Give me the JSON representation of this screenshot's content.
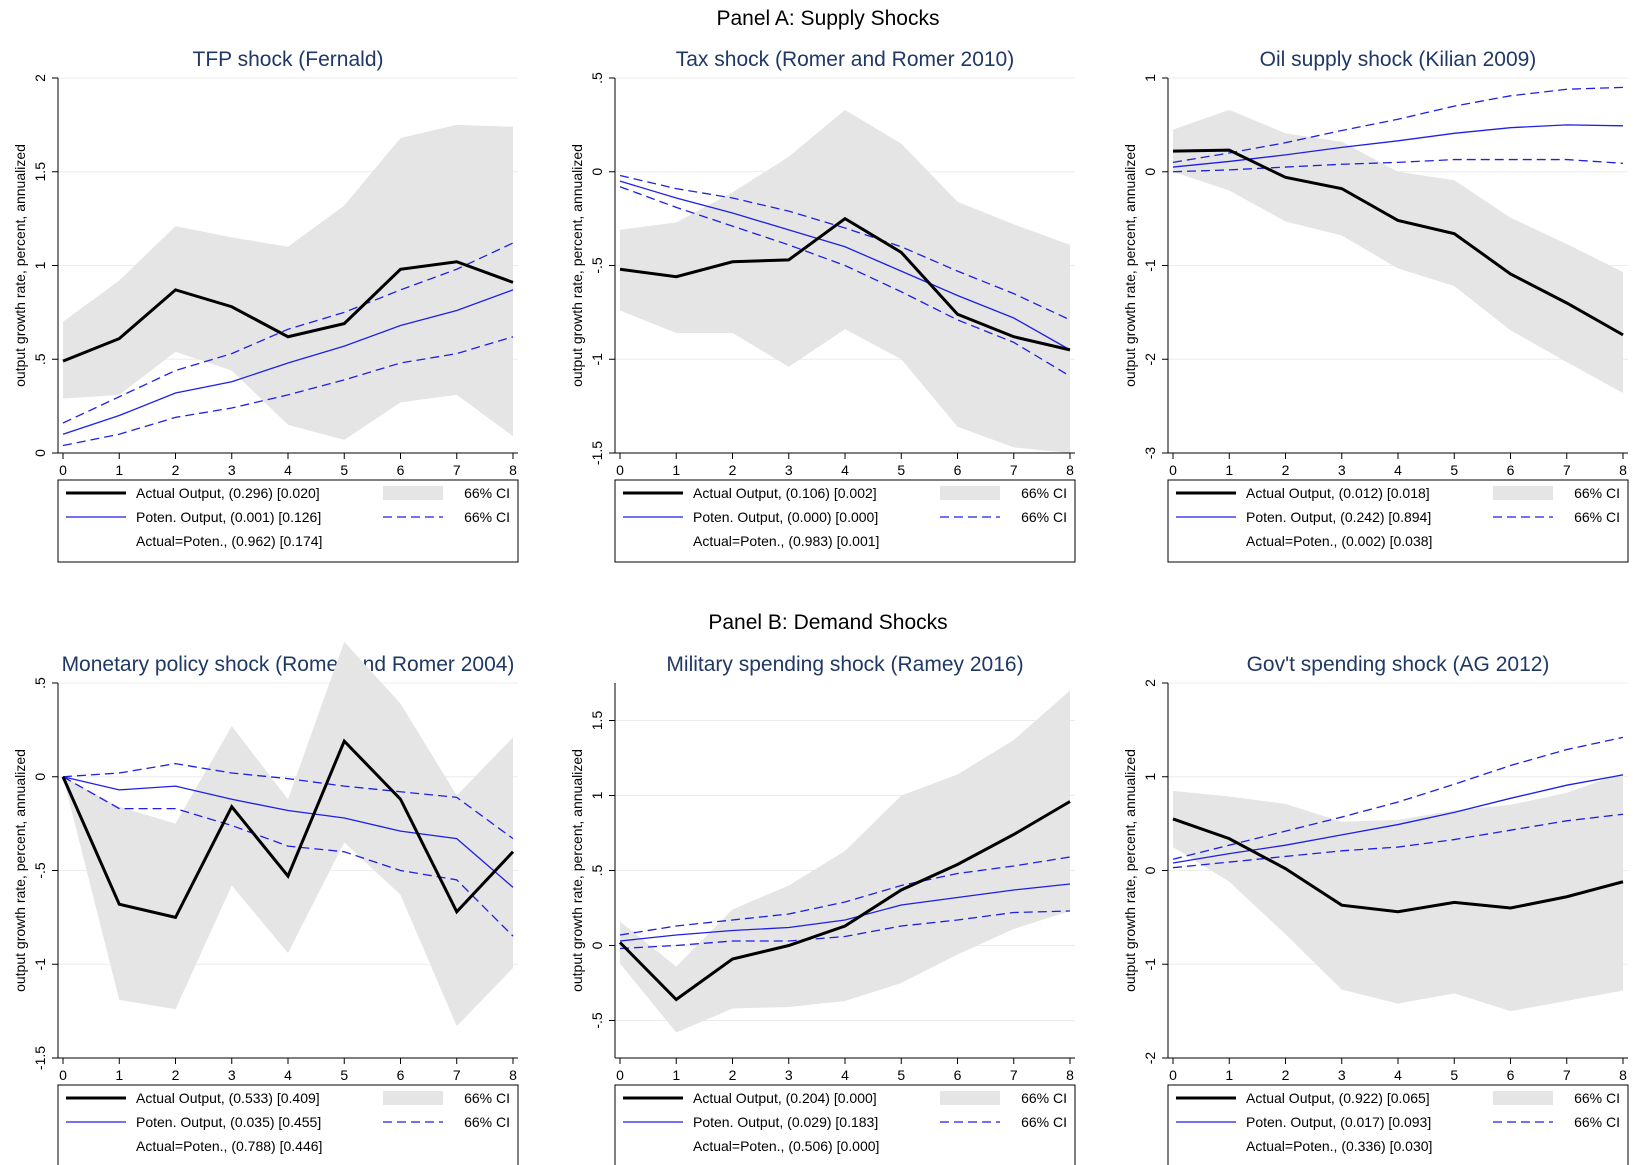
{
  "figure": {
    "panel_a_title": "Panel A: Supply Shocks",
    "panel_b_title": "Panel B: Demand Shocks"
  },
  "colors": {
    "actual": "#000000",
    "potential": "#1f1fe6",
    "band": "#e5e5e5",
    "title": "#1f3864",
    "grid": "#ececec"
  },
  "legend_labels": {
    "actual": "Actual Output,",
    "potential": "Poten. Output,",
    "equal": "Actual=Poten.,",
    "band_ci": "66% CI",
    "dash_ci": "66% CI"
  },
  "chart_data": [
    {
      "type": "line",
      "title": "TFP shock (Fernald)",
      "ylabel": "output growth rate, percent, annualized",
      "ylim": [
        0,
        2
      ],
      "yticks": [
        0,
        0.5,
        1,
        1.5,
        2
      ],
      "ytick_labels": [
        "0",
        ".5",
        "1",
        "1.5",
        "2"
      ],
      "x": [
        0,
        1,
        2,
        3,
        4,
        5,
        6,
        7,
        8
      ],
      "actual": [
        0.49,
        0.61,
        0.87,
        0.78,
        0.62,
        0.69,
        0.98,
        1.02,
        0.91
      ],
      "actual_ci": [
        [
          0.29,
          0.31,
          0.54,
          0.44,
          0.15,
          0.07,
          0.27,
          0.31,
          0.09
        ],
        [
          0.7,
          0.92,
          1.21,
          1.15,
          1.1,
          1.32,
          1.68,
          1.75,
          1.74
        ]
      ],
      "potential": [
        0.1,
        0.2,
        0.32,
        0.38,
        0.48,
        0.57,
        0.68,
        0.76,
        0.87
      ],
      "potential_ci": [
        [
          0.04,
          0.1,
          0.19,
          0.24,
          0.31,
          0.39,
          0.48,
          0.53,
          0.62
        ],
        [
          0.16,
          0.3,
          0.44,
          0.53,
          0.66,
          0.75,
          0.87,
          0.98,
          1.12
        ]
      ],
      "legend": {
        "actual_stats": "(0.296) [0.020]",
        "potential_stats": "(0.001) [0.126]",
        "equal_stats": "(0.962) [0.174]"
      }
    },
    {
      "type": "line",
      "title": "Tax shock (Romer and Romer 2010)",
      "ylabel": "output growth rate, percent, annualized",
      "ylim": [
        -1.5,
        0.5
      ],
      "yticks": [
        -1.5,
        -1,
        -0.5,
        0,
        0.5
      ],
      "ytick_labels": [
        "-1.5",
        "-1",
        "-.5",
        "0",
        ".5"
      ],
      "x": [
        0,
        1,
        2,
        3,
        4,
        5,
        6,
        7,
        8
      ],
      "actual": [
        -0.52,
        -0.56,
        -0.48,
        -0.47,
        -0.25,
        -0.43,
        -0.76,
        -0.88,
        -0.95
      ],
      "actual_ci": [
        [
          -0.74,
          -0.86,
          -0.86,
          -1.04,
          -0.84,
          -1.0,
          -1.36,
          -1.47,
          -1.5
        ],
        [
          -0.31,
          -0.27,
          -0.11,
          0.08,
          0.33,
          0.15,
          -0.16,
          -0.28,
          -0.39
        ]
      ],
      "potential": [
        -0.05,
        -0.14,
        -0.22,
        -0.31,
        -0.4,
        -0.53,
        -0.66,
        -0.78,
        -0.95
      ],
      "potential_ci": [
        [
          -0.08,
          -0.19,
          -0.29,
          -0.39,
          -0.5,
          -0.64,
          -0.79,
          -0.91,
          -1.09
        ],
        [
          -0.02,
          -0.09,
          -0.14,
          -0.21,
          -0.3,
          -0.4,
          -0.53,
          -0.65,
          -0.79
        ]
      ],
      "legend": {
        "actual_stats": "(0.106) [0.002]",
        "potential_stats": "(0.000) [0.000]",
        "equal_stats": "(0.983) [0.001]"
      }
    },
    {
      "type": "line",
      "title": "Oil supply shock (Kilian 2009)",
      "ylabel": "output growth rate, percent, annualized",
      "ylim": [
        -3,
        1
      ],
      "yticks": [
        -3,
        -2,
        -1,
        0,
        1
      ],
      "ytick_labels": [
        "-3",
        "-2",
        "-1",
        "0",
        "1"
      ],
      "x": [
        0,
        1,
        2,
        3,
        4,
        5,
        6,
        7,
        8
      ],
      "actual": [
        0.22,
        0.23,
        -0.06,
        -0.18,
        -0.52,
        -0.66,
        -1.09,
        -1.4,
        -1.74
      ],
      "actual_ci": [
        [
          0.0,
          -0.2,
          -0.53,
          -0.68,
          -1.03,
          -1.22,
          -1.69,
          -2.03,
          -2.36
        ],
        [
          0.45,
          0.66,
          0.41,
          0.32,
          0.0,
          -0.09,
          -0.49,
          -0.77,
          -1.07
        ]
      ],
      "potential": [
        0.05,
        0.11,
        0.18,
        0.26,
        0.33,
        0.41,
        0.47,
        0.5,
        0.49
      ],
      "potential_ci": [
        [
          0.0,
          0.02,
          0.05,
          0.08,
          0.1,
          0.13,
          0.13,
          0.13,
          0.09
        ],
        [
          0.1,
          0.2,
          0.31,
          0.44,
          0.56,
          0.7,
          0.81,
          0.88,
          0.9
        ]
      ],
      "legend": {
        "actual_stats": "(0.012) [0.018]",
        "potential_stats": "(0.242) [0.894]",
        "equal_stats": "(0.002) [0.038]"
      }
    },
    {
      "type": "line",
      "title": "Monetary policy shock (Romer and Romer 2004)",
      "ylabel": "output growth rate, percent, annualized",
      "ylim": [
        -1.5,
        0.5
      ],
      "yticks": [
        -1.5,
        -1,
        -0.5,
        0,
        0.5
      ],
      "ytick_labels": [
        "-1.5",
        "-1",
        "-.5",
        "0",
        ".5"
      ],
      "x": [
        0,
        1,
        2,
        3,
        4,
        5,
        6,
        7,
        8
      ],
      "actual": [
        0.0,
        -0.68,
        -0.75,
        -0.16,
        -0.53,
        0.19,
        -0.12,
        -0.72,
        -0.4
      ],
      "actual_ci": [
        [
          0.0,
          -1.19,
          -1.24,
          -0.58,
          -0.94,
          -0.35,
          -0.63,
          -1.33,
          -1.02
        ],
        [
          0.0,
          -0.16,
          -0.25,
          0.27,
          -0.12,
          0.72,
          0.39,
          -0.1,
          0.21
        ]
      ],
      "potential": [
        0.0,
        -0.07,
        -0.05,
        -0.12,
        -0.18,
        -0.22,
        -0.29,
        -0.33,
        -0.59
      ],
      "potential_ci": [
        [
          0.0,
          -0.17,
          -0.17,
          -0.26,
          -0.37,
          -0.4,
          -0.5,
          -0.55,
          -0.85
        ],
        [
          0.0,
          0.02,
          0.07,
          0.02,
          -0.01,
          -0.05,
          -0.08,
          -0.11,
          -0.33
        ]
      ],
      "legend": {
        "actual_stats": "(0.533) [0.409]",
        "potential_stats": "(0.035) [0.455]",
        "equal_stats": "(0.788) [0.446]"
      }
    },
    {
      "type": "line",
      "title": "Military spending shock (Ramey 2016)",
      "ylabel": "output growth rate, percent, annualized",
      "ylim": [
        -0.75,
        1.75
      ],
      "yticks": [
        -0.5,
        0,
        0.5,
        1,
        1.5
      ],
      "ytick_labels": [
        "-.5",
        "0",
        ".5",
        "1",
        "1.5"
      ],
      "x": [
        0,
        1,
        2,
        3,
        4,
        5,
        6,
        7,
        8
      ],
      "actual": [
        0.02,
        -0.36,
        -0.09,
        0.0,
        0.13,
        0.37,
        0.54,
        0.74,
        0.96
      ],
      "actual_ci": [
        [
          -0.12,
          -0.58,
          -0.42,
          -0.41,
          -0.37,
          -0.25,
          -0.06,
          0.11,
          0.23
        ],
        [
          0.16,
          -0.14,
          0.24,
          0.4,
          0.63,
          1.0,
          1.14,
          1.37,
          1.7
        ]
      ],
      "potential": [
        0.03,
        0.07,
        0.1,
        0.12,
        0.17,
        0.27,
        0.32,
        0.37,
        0.41
      ],
      "potential_ci": [
        [
          -0.02,
          0.0,
          0.03,
          0.03,
          0.06,
          0.13,
          0.17,
          0.22,
          0.23
        ],
        [
          0.07,
          0.13,
          0.17,
          0.21,
          0.29,
          0.4,
          0.48,
          0.53,
          0.59
        ]
      ],
      "legend": {
        "actual_stats": "(0.204) [0.000]",
        "potential_stats": "(0.029) [0.183]",
        "equal_stats": "(0.506) [0.000]"
      }
    },
    {
      "type": "line",
      "title": "Gov't spending shock (AG 2012)",
      "ylabel": "output growth rate, percent, annualized",
      "ylim": [
        -2,
        2
      ],
      "yticks": [
        -2,
        -1,
        0,
        1,
        2
      ],
      "ytick_labels": [
        "-2",
        "-1",
        "0",
        "1",
        "2"
      ],
      "x": [
        0,
        1,
        2,
        3,
        4,
        5,
        6,
        7,
        8
      ],
      "actual": [
        0.55,
        0.34,
        0.02,
        -0.37,
        -0.44,
        -0.34,
        -0.4,
        -0.28,
        -0.12
      ],
      "actual_ci": [
        [
          0.25,
          -0.12,
          -0.68,
          -1.27,
          -1.42,
          -1.31,
          -1.5,
          -1.39,
          -1.28
        ],
        [
          0.85,
          0.79,
          0.71,
          0.52,
          0.54,
          0.64,
          0.7,
          0.83,
          1.04
        ]
      ],
      "potential": [
        0.08,
        0.18,
        0.27,
        0.38,
        0.49,
        0.62,
        0.77,
        0.91,
        1.02
      ],
      "potential_ci": [
        [
          0.03,
          0.09,
          0.15,
          0.21,
          0.25,
          0.33,
          0.43,
          0.53,
          0.6
        ],
        [
          0.12,
          0.27,
          0.42,
          0.57,
          0.73,
          0.92,
          1.12,
          1.29,
          1.42
        ]
      ],
      "legend": {
        "actual_stats": "(0.922) [0.065]",
        "potential_stats": "(0.017) [0.093]",
        "equal_stats": "(0.336) [0.030]"
      }
    }
  ]
}
